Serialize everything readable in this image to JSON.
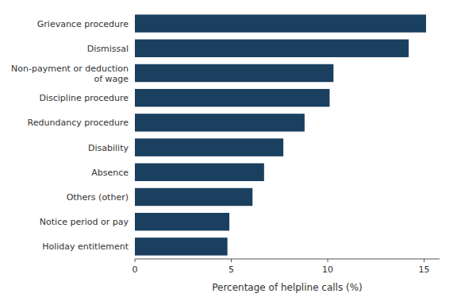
{
  "chart_data": {
    "type": "bar",
    "orientation": "horizontal",
    "categories": [
      "Holiday entitlement",
      "Notice period or pay",
      "Others (other)",
      "Absence",
      "Disability",
      "Redundancy procedure",
      "Discipline procedure",
      "Non-payment or deduction\nof wage",
      "Dismissal",
      "Grievance procedure"
    ],
    "values": [
      4.8,
      4.9,
      6.1,
      6.7,
      7.7,
      8.8,
      10.1,
      10.3,
      14.2,
      15.1
    ],
    "color": "#1b3f5e",
    "xlabel": "Percentage of helpline calls (%)",
    "xlim": [
      0,
      15.8
    ],
    "xticks": [
      0,
      5,
      10,
      15
    ],
    "grid": false
  }
}
